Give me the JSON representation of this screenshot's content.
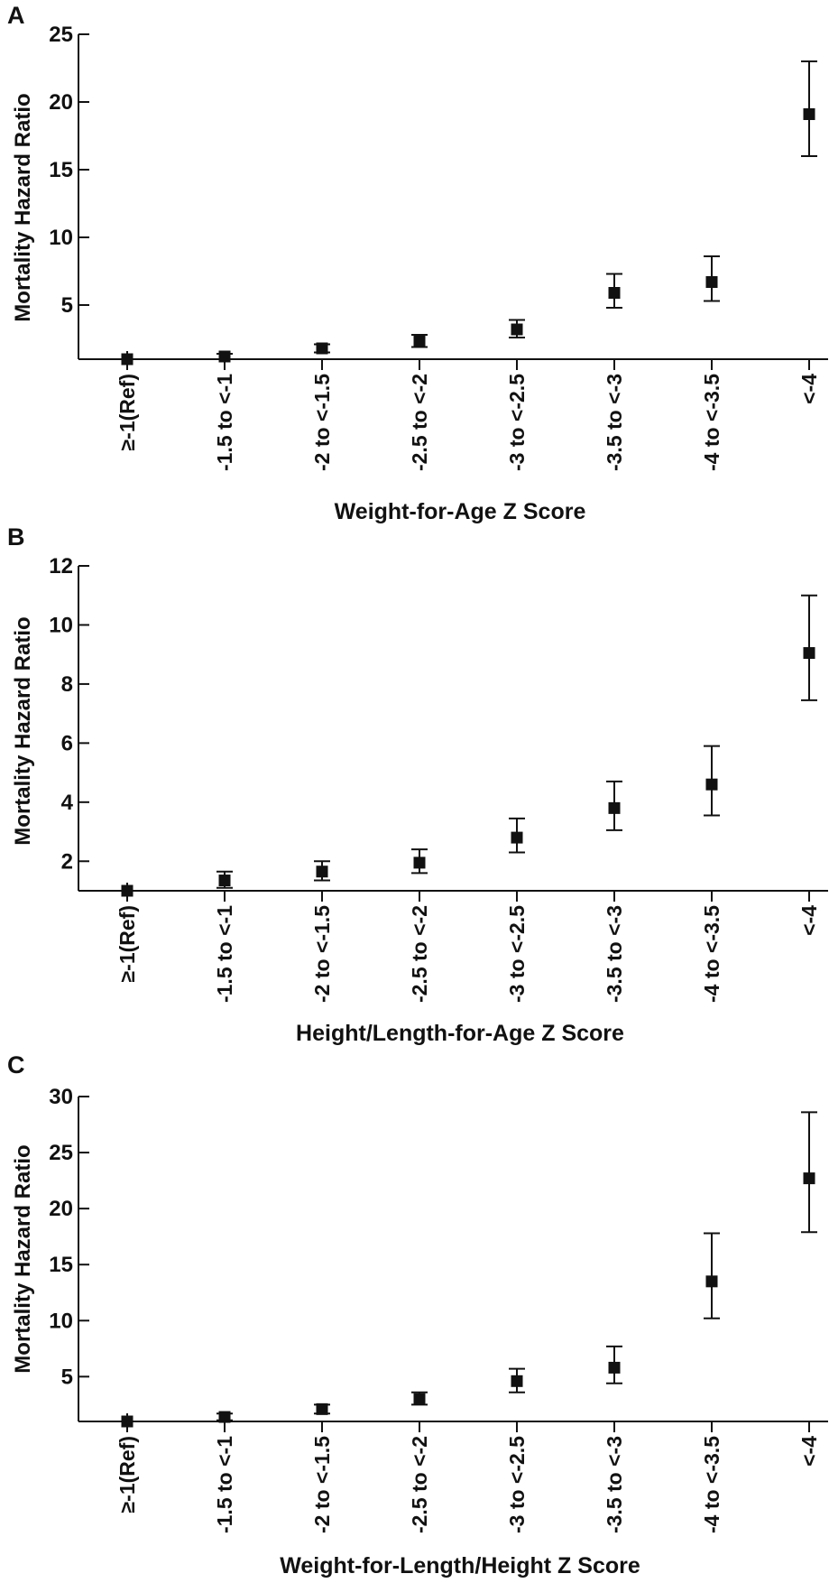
{
  "chart_data": [
    {
      "type": "scatter",
      "panel": "A",
      "xlabel": "Weight-for-Age Z Score",
      "ylabel": "Mortality Hazard Ratio",
      "categories": [
        "≥-1(Ref)",
        "-1.5 to <-1",
        "-2 to <-1.5",
        "-2.5 to <-2",
        "-3 to <-2.5",
        "-3.5 to <-3",
        "-4 to <-3.5",
        "<-4"
      ],
      "values": [
        1.0,
        1.2,
        1.8,
        2.3,
        3.2,
        5.9,
        6.7,
        19.1
      ],
      "ci_lower": [
        1.0,
        1.0,
        1.5,
        1.9,
        2.6,
        4.8,
        5.3,
        16.0
      ],
      "ci_upper": [
        1.0,
        1.4,
        2.1,
        2.8,
        3.9,
        7.3,
        8.6,
        23.0
      ],
      "ylim": [
        1,
        25
      ],
      "yticks": [
        5,
        10,
        15,
        20,
        25
      ]
    },
    {
      "type": "scatter",
      "panel": "B",
      "xlabel": "Height/Length-for-Age Z Score",
      "ylabel": "Mortality Hazard Ratio",
      "categories": [
        "≥-1(Ref)",
        "-1.5 to <-1",
        "-2 to <-1.5",
        "-2.5 to <-2",
        "-3 to <-2.5",
        "-3.5 to <-3",
        "-4 to <-3.5",
        "<-4"
      ],
      "values": [
        1.0,
        1.35,
        1.65,
        1.95,
        2.8,
        3.8,
        4.6,
        9.05
      ],
      "ci_lower": [
        1.0,
        1.1,
        1.35,
        1.6,
        2.3,
        3.05,
        3.55,
        7.45
      ],
      "ci_upper": [
        1.0,
        1.65,
        2.0,
        2.4,
        3.45,
        4.7,
        5.9,
        11.0
      ],
      "ylim": [
        1,
        12
      ],
      "yticks": [
        2,
        4,
        6,
        8,
        10,
        12
      ]
    },
    {
      "type": "scatter",
      "panel": "C",
      "xlabel": "Weight-for-Length/Height Z Score",
      "ylabel": "Mortality Hazard Ratio",
      "categories": [
        "≥-1(Ref)",
        "-1.5 to <-1",
        "-2 to <-1.5",
        "-2.5 to <-2",
        "-3 to <-2.5",
        "-3.5 to <-3",
        "-4 to <-3.5",
        "<-4"
      ],
      "values": [
        1.0,
        1.4,
        2.1,
        3.0,
        4.6,
        5.8,
        13.5,
        22.7
      ],
      "ci_lower": [
        1.0,
        1.1,
        1.7,
        2.5,
        3.6,
        4.4,
        10.2,
        17.9
      ],
      "ci_upper": [
        1.0,
        1.7,
        2.5,
        3.6,
        5.7,
        7.7,
        17.8,
        28.6
      ],
      "ylim": [
        1,
        30
      ],
      "yticks": [
        5,
        10,
        15,
        20,
        25,
        30
      ]
    }
  ]
}
